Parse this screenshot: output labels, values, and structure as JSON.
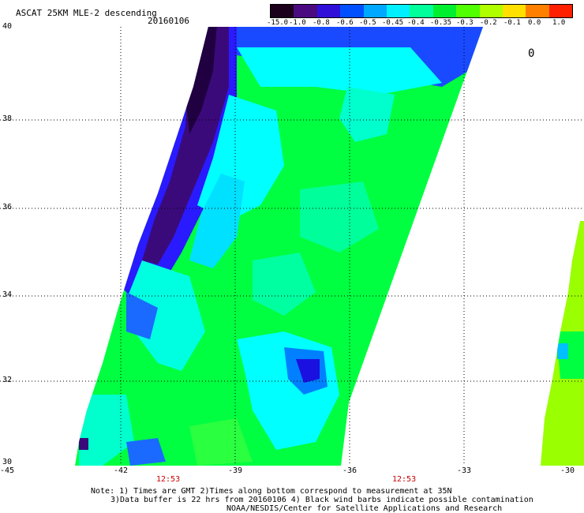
{
  "header": {
    "title": "ASCAT 25KM MLE-2 descending",
    "date": "20160106"
  },
  "colorbar": {
    "labels": [
      "-15.0",
      "-1.0",
      "-0.8",
      "-0.6",
      "-0.5",
      "-0.45",
      "-0.4",
      "-0.35",
      "-0.3",
      "-0.2",
      "-0.1",
      "0.0",
      "1.0"
    ],
    "colors": [
      "#2a0030",
      "#5a1090",
      "#3a10d0",
      "#0040ff",
      "#0090ff",
      "#00e0ff",
      "#00ff90",
      "#00f020",
      "#40ff00",
      "#a0ff00",
      "#ffff00",
      "#ff8000",
      "#ff1010"
    ]
  },
  "axes": {
    "x_ticks": [
      "-45",
      "-42",
      "-39",
      "-36",
      "-33",
      "-30"
    ],
    "y_ticks": [
      "40",
      "38",
      "36",
      "34",
      "32",
      "30"
    ]
  },
  "time_labels": [
    "12:53",
    "12:53"
  ],
  "footer": {
    "line1": "Note: 1) Times are GMT 2)Times along bottom correspond to measurement at 35N",
    "line2": "3)Data buffer is 22 hrs from 20160106 4) Black wind barbs indicate possible contamination",
    "line3": "NOAA/NESDIS/Center for Satellite Applications and Research"
  },
  "marker": {
    "symbol": "0"
  },
  "palette": {
    "deep_purple": "#3a0a6a",
    "violet": "#5a1aa0",
    "blue": "#1a1aff",
    "sky": "#2aa0ff",
    "cyan": "#00ffff",
    "aqua": "#00ff9a",
    "green": "#00ff40",
    "lime": "#40ff00",
    "yellow_green": "#9aff00"
  }
}
